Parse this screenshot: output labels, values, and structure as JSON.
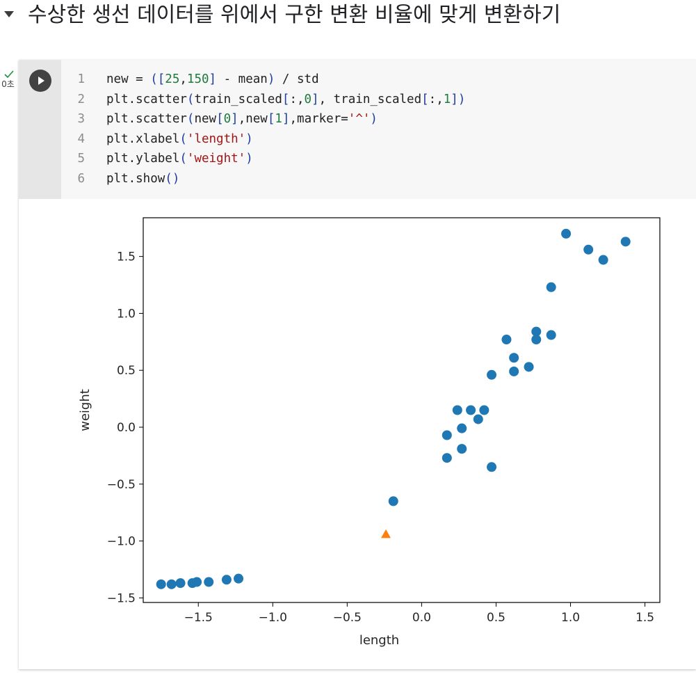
{
  "section": {
    "title": "수상한 생선 데이터를 위에서 구한 변환 비율에 맞게 변환하기"
  },
  "cell": {
    "exec_time": "0초",
    "code_lines": [
      {
        "num": "1",
        "tokens": [
          {
            "t": "new = ",
            "c": "def"
          },
          {
            "t": "([",
            "c": "punc"
          },
          {
            "t": "25",
            "c": "num"
          },
          {
            "t": ",",
            "c": "def"
          },
          {
            "t": "150",
            "c": "num"
          },
          {
            "t": "]",
            "c": "punc"
          },
          {
            "t": " - mean",
            "c": "def"
          },
          {
            "t": ")",
            "c": "punc"
          },
          {
            "t": " / std",
            "c": "def"
          }
        ]
      },
      {
        "num": "2",
        "tokens": [
          {
            "t": "plt.scatter",
            "c": "def"
          },
          {
            "t": "(",
            "c": "punc"
          },
          {
            "t": "train_scaled",
            "c": "def"
          },
          {
            "t": "[",
            "c": "punc"
          },
          {
            "t": ":,",
            "c": "def"
          },
          {
            "t": "0",
            "c": "num"
          },
          {
            "t": "]",
            "c": "punc"
          },
          {
            "t": ", train_scaled",
            "c": "def"
          },
          {
            "t": "[",
            "c": "punc"
          },
          {
            "t": ":,",
            "c": "def"
          },
          {
            "t": "1",
            "c": "num"
          },
          {
            "t": "])",
            "c": "punc"
          }
        ]
      },
      {
        "num": "3",
        "tokens": [
          {
            "t": "plt.scatter",
            "c": "def"
          },
          {
            "t": "(",
            "c": "punc"
          },
          {
            "t": "new",
            "c": "def"
          },
          {
            "t": "[",
            "c": "punc"
          },
          {
            "t": "0",
            "c": "num"
          },
          {
            "t": "]",
            "c": "punc"
          },
          {
            "t": ",new",
            "c": "def"
          },
          {
            "t": "[",
            "c": "punc"
          },
          {
            "t": "1",
            "c": "num"
          },
          {
            "t": "]",
            "c": "punc"
          },
          {
            "t": ",marker=",
            "c": "def"
          },
          {
            "t": "'^'",
            "c": "str"
          },
          {
            "t": ")",
            "c": "punc"
          }
        ]
      },
      {
        "num": "4",
        "tokens": [
          {
            "t": "plt.xlabel",
            "c": "def"
          },
          {
            "t": "(",
            "c": "punc"
          },
          {
            "t": "'length'",
            "c": "str"
          },
          {
            "t": ")",
            "c": "punc"
          }
        ]
      },
      {
        "num": "5",
        "tokens": [
          {
            "t": "plt.ylabel",
            "c": "def"
          },
          {
            "t": "(",
            "c": "punc"
          },
          {
            "t": "'weight'",
            "c": "str"
          },
          {
            "t": ")",
            "c": "punc"
          }
        ]
      },
      {
        "num": "6",
        "tokens": [
          {
            "t": "plt.show",
            "c": "def"
          },
          {
            "t": "()",
            "c": "punc"
          }
        ]
      }
    ]
  },
  "colors": {
    "series_blue": "#1f77b4",
    "series_orange": "#ff7f0e"
  },
  "icons": {
    "run": "play-icon",
    "status": "check-icon",
    "toggle": "caret-down-icon"
  },
  "chart_data": {
    "type": "scatter",
    "xlabel": "length",
    "ylabel": "weight",
    "xlim": [
      -1.87,
      1.6
    ],
    "ylim": [
      -1.54,
      1.84
    ],
    "xticks": [
      -1.5,
      -1.0,
      -0.5,
      0.0,
      0.5,
      1.0,
      1.5
    ],
    "xtick_labels": [
      "−1.5",
      "−1.0",
      "−0.5",
      "0.0",
      "0.5",
      "1.0",
      "1.5"
    ],
    "yticks": [
      -1.5,
      -1.0,
      -0.5,
      0.0,
      0.5,
      1.0,
      1.5
    ],
    "ytick_labels": [
      "−1.5",
      "−1.0",
      "−0.5",
      "0.0",
      "0.5",
      "1.0",
      "1.5"
    ],
    "grid": false,
    "legend": "none",
    "series": [
      {
        "marker": "circle",
        "color": "#1f77b4",
        "points": [
          [
            0.97,
            1.7
          ],
          [
            1.12,
            1.56
          ],
          [
            1.22,
            1.47
          ],
          [
            1.37,
            1.63
          ],
          [
            0.87,
            1.23
          ],
          [
            0.77,
            0.84
          ],
          [
            0.77,
            0.77
          ],
          [
            0.87,
            0.81
          ],
          [
            0.57,
            0.77
          ],
          [
            0.62,
            0.61
          ],
          [
            0.72,
            0.53
          ],
          [
            0.62,
            0.49
          ],
          [
            0.47,
            0.46
          ],
          [
            0.24,
            0.15
          ],
          [
            0.33,
            0.15
          ],
          [
            0.42,
            0.15
          ],
          [
            0.38,
            0.07
          ],
          [
            0.27,
            -0.01
          ],
          [
            0.17,
            -0.07
          ],
          [
            0.17,
            -0.27
          ],
          [
            0.27,
            -0.19
          ],
          [
            0.47,
            -0.35
          ],
          [
            -0.19,
            -0.65
          ],
          [
            -1.75,
            -1.38
          ],
          [
            -1.68,
            -1.38
          ],
          [
            -1.62,
            -1.37
          ],
          [
            -1.54,
            -1.37
          ],
          [
            -1.51,
            -1.36
          ],
          [
            -1.43,
            -1.36
          ],
          [
            -1.31,
            -1.34
          ],
          [
            -1.23,
            -1.33
          ]
        ]
      },
      {
        "marker": "triangle",
        "color": "#ff7f0e",
        "points": [
          [
            -0.24,
            -0.94
          ]
        ]
      }
    ]
  }
}
